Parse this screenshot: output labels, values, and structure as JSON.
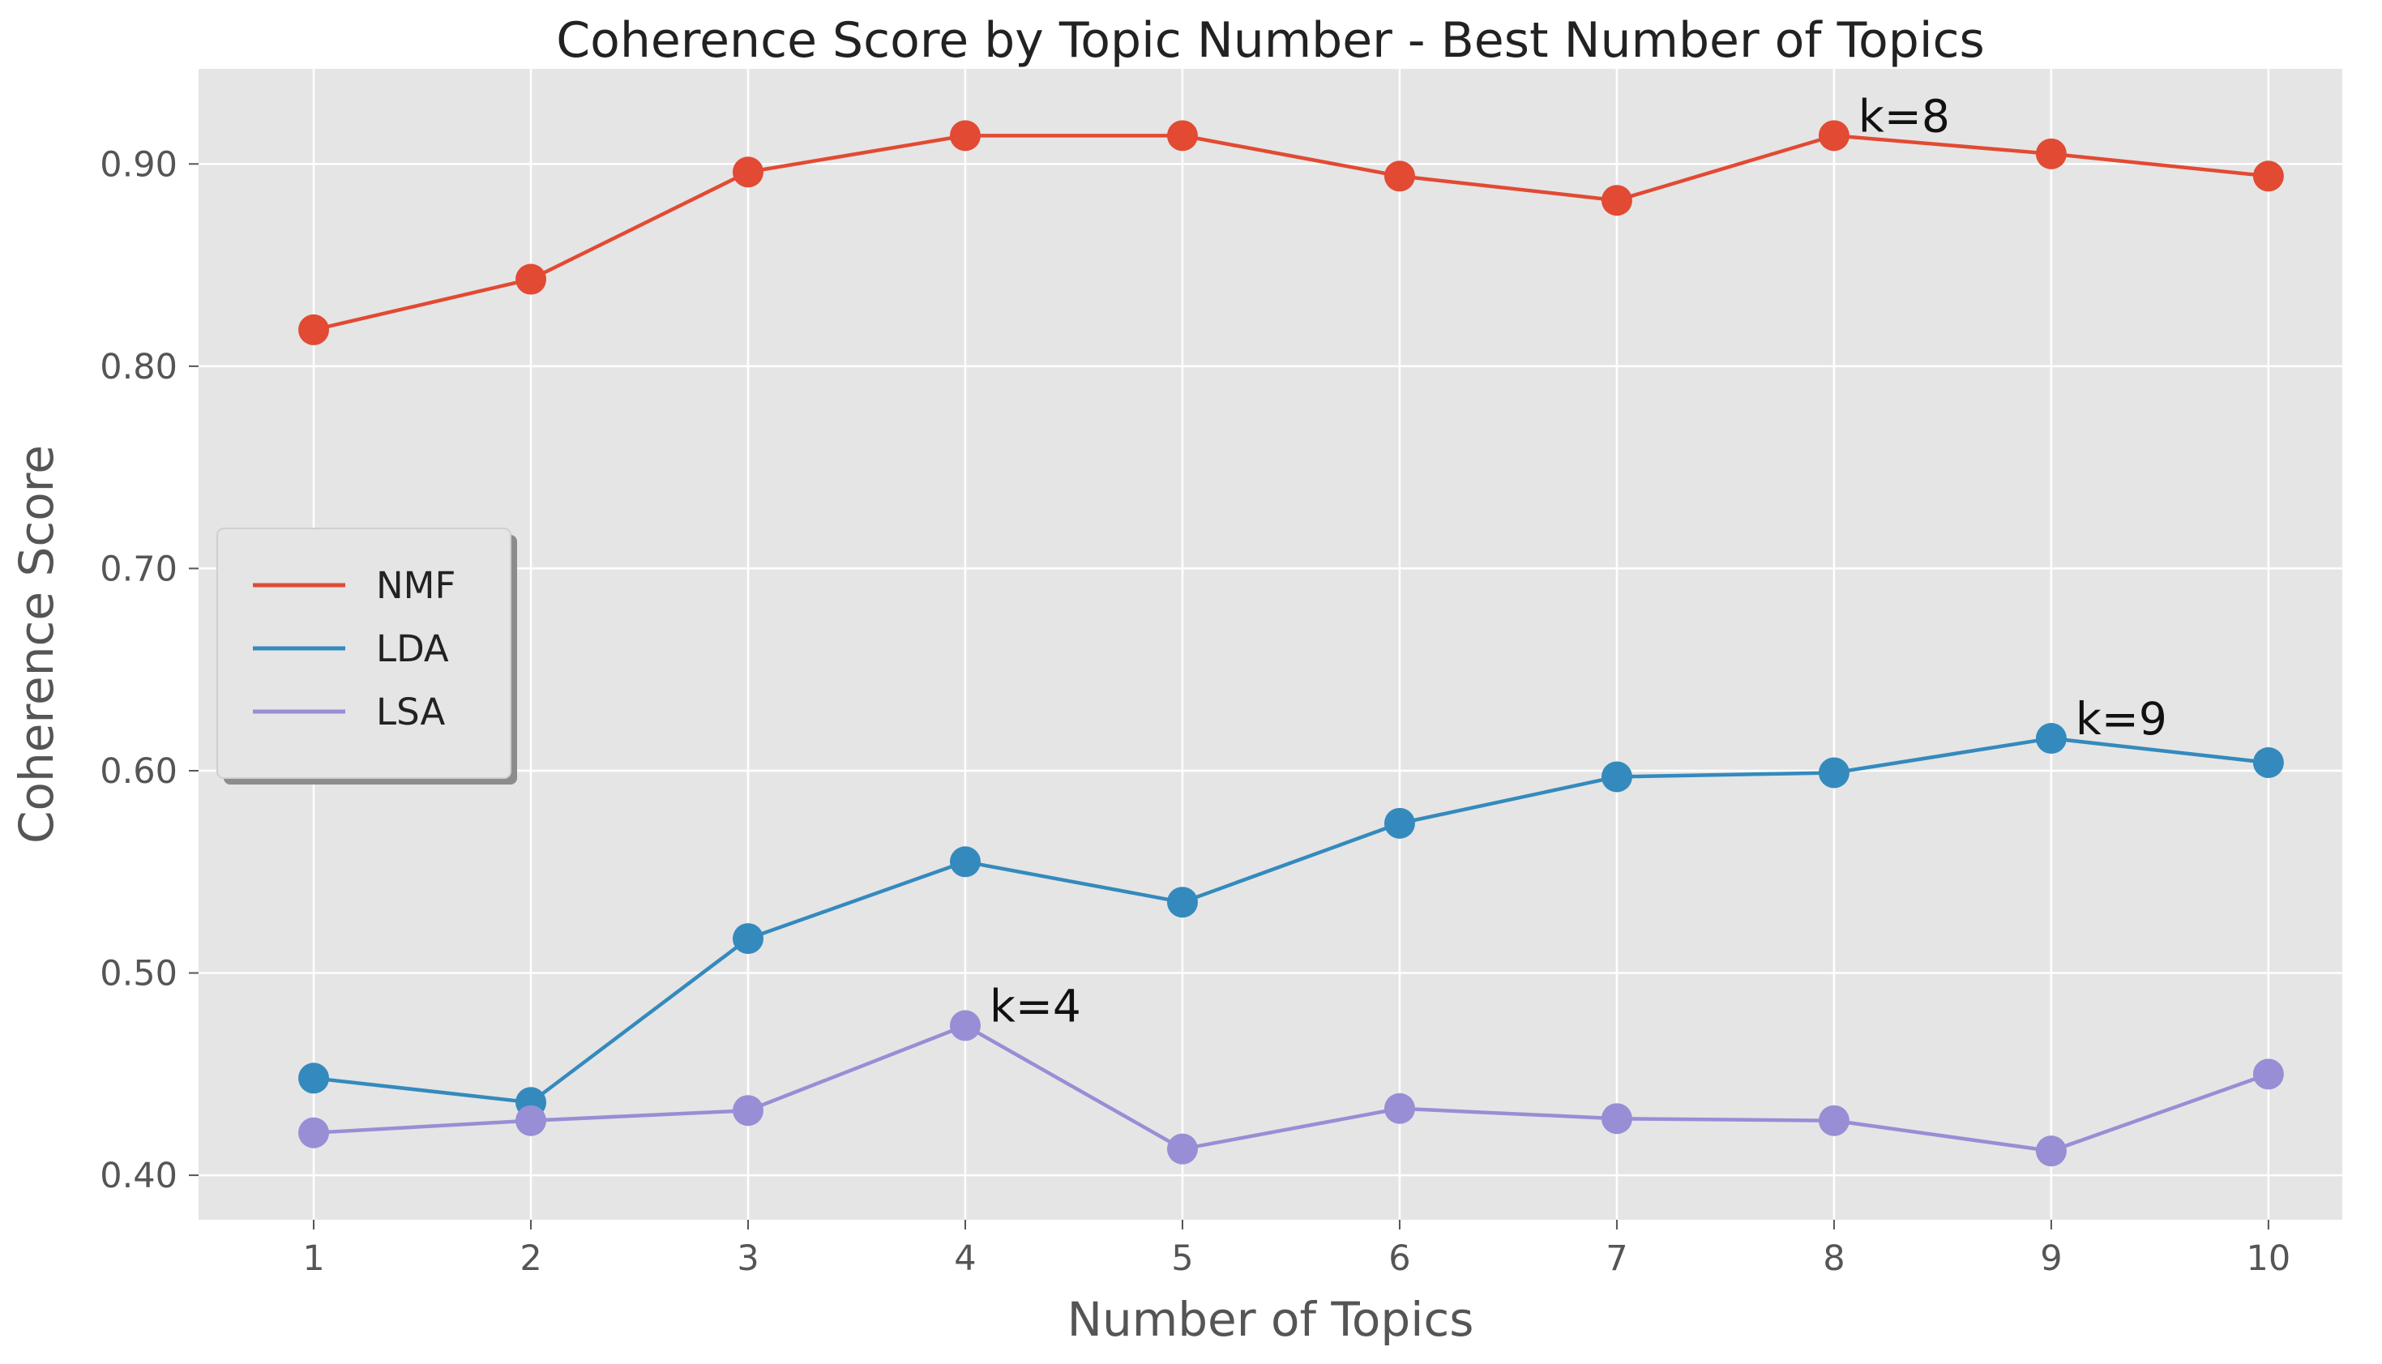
{
  "chart_data": {
    "type": "line",
    "title": "Coherence Score by Topic Number - Best Number of Topics",
    "xlabel": "Number of Topics",
    "ylabel": "Coherence Score",
    "x": [
      1,
      2,
      3,
      4,
      5,
      6,
      7,
      8,
      9,
      10
    ],
    "xlim": [
      0.47,
      10.34
    ],
    "ylim": [
      0.378,
      0.947
    ],
    "yticks": [
      0.4,
      0.5,
      0.6,
      0.7,
      0.8,
      0.9
    ],
    "ytick_labels": [
      "0.40",
      "0.50",
      "0.60",
      "0.70",
      "0.80",
      "0.90"
    ],
    "xtick_labels": [
      "1",
      "2",
      "3",
      "4",
      "5",
      "6",
      "7",
      "8",
      "9",
      "10"
    ],
    "grid": true,
    "legend_position": "center-left",
    "series": [
      {
        "name": "NMF",
        "color": "#E24A33",
        "values": [
          0.818,
          0.843,
          0.896,
          0.914,
          0.914,
          0.894,
          0.882,
          0.914,
          0.905,
          0.894
        ]
      },
      {
        "name": "LDA",
        "color": "#348ABD",
        "values": [
          0.448,
          0.436,
          0.517,
          0.555,
          0.535,
          0.574,
          0.597,
          0.599,
          0.616,
          0.604
        ]
      },
      {
        "name": "LSA",
        "color": "#988ED5",
        "values": [
          0.421,
          0.427,
          0.432,
          0.474,
          0.413,
          0.433,
          0.428,
          0.427,
          0.412,
          0.45
        ]
      }
    ],
    "annotations": [
      {
        "text": "k=8",
        "x": 8,
        "y": 0.914
      },
      {
        "text": "k=9",
        "x": 9,
        "y": 0.616
      },
      {
        "text": "k=4",
        "x": 4,
        "y": 0.474
      }
    ]
  }
}
